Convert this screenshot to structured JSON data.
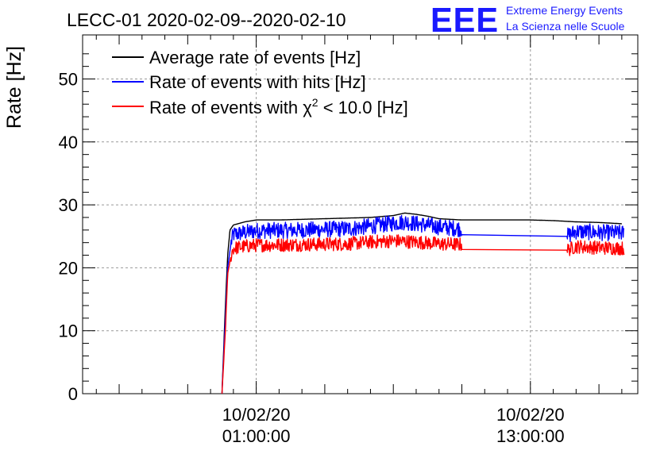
{
  "chart_data": {
    "type": "line",
    "title": "LECC-01 2020-02-09--2020-02-10",
    "ylabel": "Rate [Hz]",
    "xlabel": "",
    "ylim": [
      0,
      57
    ],
    "xlim_hours": [
      -7.6,
      16.7
    ],
    "yticks": [
      0,
      10,
      20,
      30,
      40,
      50
    ],
    "xticks": [
      {
        "hours": 0,
        "date": "10/02/20",
        "time": "01:00:00"
      },
      {
        "hours": 12,
        "date": "10/02/20",
        "time": "13:00:00"
      }
    ],
    "x_unit": "hours relative to 10/02/20 01:00:00",
    "grid": true,
    "legend_position": "top-left",
    "series": [
      {
        "name": "Average rate of events [Hz]",
        "color": "#000000",
        "noise": 0,
        "x": [
          -1.5,
          -1.35,
          -1.25,
          -1.15,
          -1.0,
          -0.5,
          0,
          1,
          3,
          5,
          6,
          6.5,
          7,
          7.5,
          8,
          9,
          12,
          13,
          14,
          15,
          16.0
        ],
        "y": [
          0,
          14,
          22,
          26,
          26.8,
          27.3,
          27.6,
          27.6,
          27.8,
          28.0,
          28.3,
          28.7,
          28.5,
          28.2,
          27.8,
          27.6,
          27.6,
          27.5,
          27.3,
          27.2,
          27.0
        ]
      },
      {
        "name": "Rate of events with hits [Hz]",
        "color": "#0000ff",
        "noise": 1.3,
        "x": [
          -1.5,
          -1.35,
          -1.25,
          -1.1,
          -1.0,
          -0.5,
          0,
          2,
          4,
          5,
          6,
          6.5,
          7,
          8,
          9,
          13.6,
          14,
          15,
          16.1
        ],
        "y": [
          0,
          12,
          20,
          24,
          25.3,
          25.6,
          25.9,
          26.0,
          26.2,
          26.6,
          27.1,
          27.3,
          27.0,
          26.5,
          26.2,
          25.0,
          25.8,
          25.6,
          25.5
        ],
        "gaps": [
          [
            9,
            13.6
          ]
        ]
      },
      {
        "name": "Rate of events with χ² < 10.0 [Hz]",
        "color": "#ff0000",
        "noise": 1.1,
        "x": [
          -1.5,
          -1.35,
          -1.25,
          -1.1,
          -1.0,
          -0.5,
          0,
          2,
          4,
          5,
          6,
          7,
          8,
          9,
          13.6,
          14,
          15,
          16.1
        ],
        "y": [
          0,
          10,
          19,
          22,
          23.1,
          23.4,
          23.6,
          23.7,
          23.8,
          24.1,
          24.3,
          24.1,
          23.8,
          23.7,
          22.8,
          23.4,
          23.2,
          23.1
        ],
        "gaps": [
          [
            9,
            13.6
          ]
        ]
      }
    ]
  },
  "legend": {
    "avg_label": "Average rate of events [Hz]",
    "hits_label": "Rate of events with hits [Hz]",
    "chi_prefix": "Rate of events with ",
    "chi_symbol": "χ",
    "chi_exp": "2",
    "chi_suffix": " < 10.0 [Hz]"
  },
  "logo": {
    "mark": "EEE",
    "line1": "Extreme Energy Events",
    "line2": "La Scienza nelle Scuole"
  }
}
